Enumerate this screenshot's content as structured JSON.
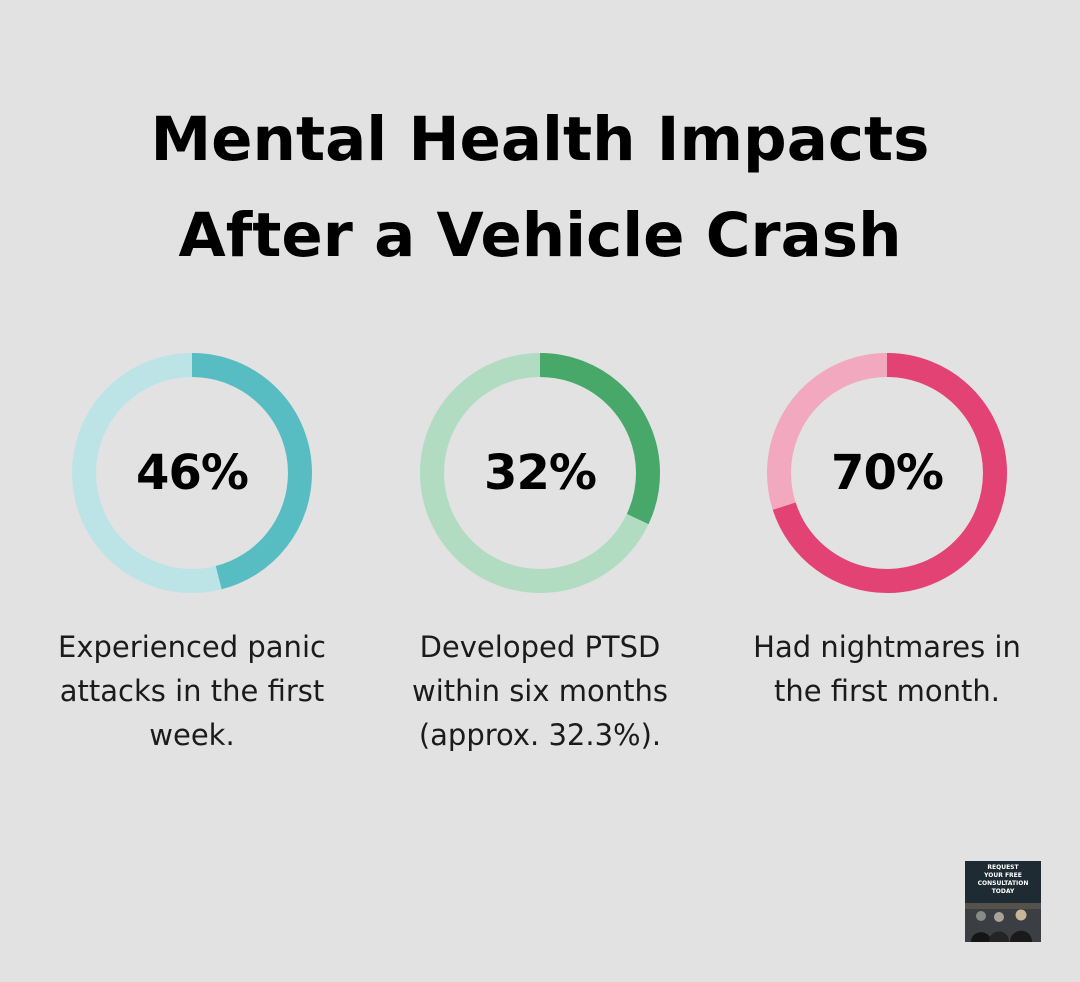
{
  "title": {
    "line1": "Mental Health Impacts",
    "line2": "After a Vehicle Crash"
  },
  "chart_data": {
    "type": "pie",
    "variant": "donut",
    "items": [
      {
        "value": 46,
        "label": "46%",
        "caption": "Experienced panic attacks in the first week.",
        "color": "#58bdc3",
        "track_color": "#bce4e6"
      },
      {
        "value": 32,
        "label": "32%",
        "caption": "Developed PTSD within six months (approx. 32.3%).",
        "color": "#48a86a",
        "track_color": "#b2dcc2"
      },
      {
        "value": 70,
        "label": "70%",
        "caption": "Had nightmares in the first month.",
        "color": "#e34374",
        "track_color": "#f2a8bf"
      }
    ]
  },
  "promo": {
    "line1": "REQUEST",
    "line2": "YOUR FREE",
    "line3": "CONSULTATION",
    "line4": "TODAY"
  }
}
